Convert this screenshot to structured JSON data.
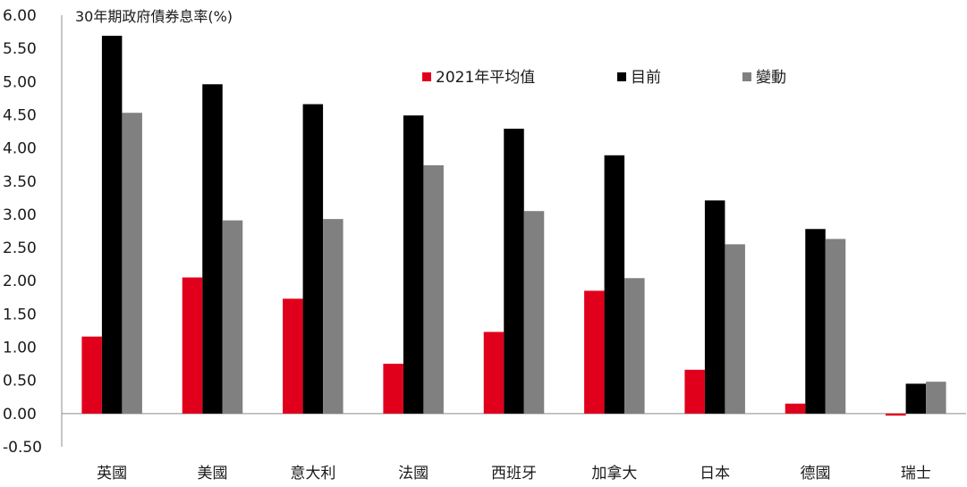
{
  "chart_data": {
    "type": "bar",
    "title": "",
    "ylabel": "30年期政府債券息率(%)",
    "xlabel": "",
    "ylim": [
      -0.5,
      6.0
    ],
    "yticks": [
      6.0,
      5.5,
      5.0,
      4.5,
      4.0,
      3.5,
      3.0,
      2.5,
      2.0,
      1.5,
      1.0,
      0.5,
      0.0,
      -0.5
    ],
    "ytick_labels": [
      "6.00",
      "5.50",
      "5.00",
      "4.50",
      "4.00",
      "3.50",
      "3.00",
      "2.50",
      "2.00",
      "1.50",
      "1.00",
      "0.50",
      "0.00",
      "-0.50"
    ],
    "grid": false,
    "legend_position": "top-right",
    "categories": [
      "英國",
      "美國",
      "意大利",
      "法國",
      "西班牙",
      "加拿大",
      "日本",
      "德國",
      "瑞士"
    ],
    "series": [
      {
        "name": "2021年平均值",
        "color": "#e0001b",
        "values": [
          1.16,
          2.05,
          1.73,
          0.75,
          1.23,
          1.85,
          0.66,
          0.15,
          -0.03
        ]
      },
      {
        "name": "目前",
        "color": "#000000",
        "values": [
          5.69,
          4.96,
          4.66,
          4.49,
          4.29,
          3.89,
          3.21,
          2.78,
          0.45
        ]
      },
      {
        "name": "變動",
        "color": "#808080",
        "values": [
          4.53,
          2.91,
          2.93,
          3.74,
          3.05,
          2.04,
          2.55,
          2.63,
          0.48
        ]
      }
    ]
  }
}
